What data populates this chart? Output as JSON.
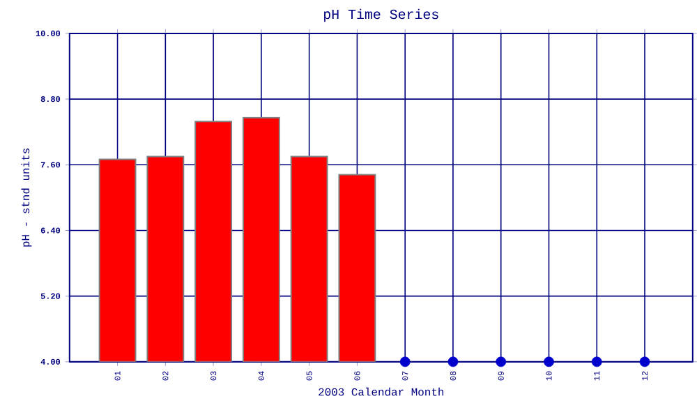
{
  "chart_data": {
    "type": "bar",
    "title": "pH Time Series",
    "xlabel": "2003 Calendar Month",
    "ylabel": "pH - stnd units",
    "categories": [
      "01",
      "02",
      "03",
      "04",
      "05",
      "06",
      "07",
      "08",
      "09",
      "10",
      "11",
      "12"
    ],
    "series": [
      {
        "color": "#ff0000",
        "values": [
          7.7,
          7.75,
          8.39,
          8.46,
          7.75,
          7.42,
          null,
          null,
          null,
          null,
          null,
          null
        ]
      },
      {
        "type": "scatter",
        "color": "#0000cc",
        "marker": "circle",
        "values": [
          null,
          null,
          null,
          null,
          null,
          null,
          4.0,
          4.0,
          4.0,
          4.0,
          4.0,
          4.0
        ]
      }
    ],
    "ylim": [
      4.0,
      10.0
    ],
    "yticks": [
      {
        "value": 4.0,
        "label": "4.00"
      },
      {
        "value": 5.2,
        "label": "5.20"
      },
      {
        "value": 6.4,
        "label": "6.40"
      },
      {
        "value": 7.6,
        "label": "7.60"
      },
      {
        "value": 8.8,
        "label": "8.80"
      },
      {
        "value": 10.0,
        "label": "10.00"
      }
    ],
    "grid": true
  }
}
